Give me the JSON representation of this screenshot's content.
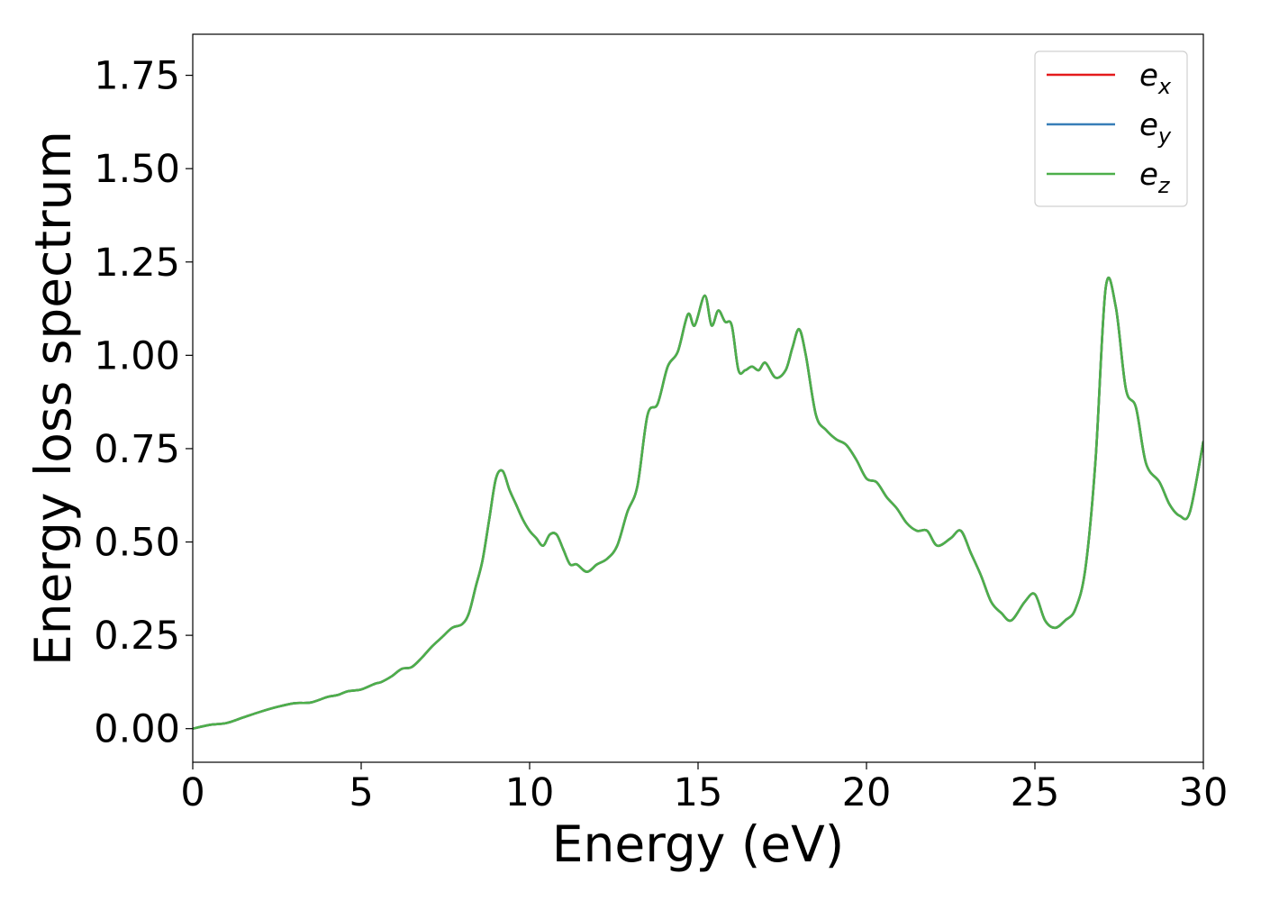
{
  "chart_data": {
    "type": "line",
    "title": "",
    "xlabel": "Energy (eV)",
    "ylabel": "Energy loss spectrum",
    "xlim": [
      0,
      30
    ],
    "ylim": [
      -0.09,
      1.86
    ],
    "xticks": [
      0,
      5,
      10,
      15,
      20,
      25,
      30
    ],
    "xtick_labels": [
      "0",
      "5",
      "10",
      "15",
      "20",
      "25",
      "30"
    ],
    "yticks": [
      0.0,
      0.25,
      0.5,
      0.75,
      1.0,
      1.25,
      1.5,
      1.75
    ],
    "ytick_labels": [
      "0.00",
      "0.25",
      "0.50",
      "0.75",
      "1.00",
      "1.25",
      "1.50",
      "1.75"
    ],
    "grid": false,
    "legend_position": "top-right",
    "x": [
      0,
      0.5,
      1,
      1.5,
      2,
      2.5,
      3,
      3.5,
      4,
      4.3,
      4.6,
      5,
      5.4,
      5.6,
      5.9,
      6.2,
      6.5,
      6.8,
      7.1,
      7.4,
      7.7,
      8.0,
      8.2,
      8.4,
      8.6,
      8.8,
      9.0,
      9.2,
      9.4,
      9.6,
      9.8,
      10.0,
      10.2,
      10.4,
      10.6,
      10.8,
      11.0,
      11.2,
      11.4,
      11.7,
      12.0,
      12.3,
      12.6,
      12.9,
      13.2,
      13.5,
      13.8,
      14.1,
      14.4,
      14.7,
      14.9,
      15.2,
      15.4,
      15.6,
      15.8,
      16.0,
      16.2,
      16.4,
      16.6,
      16.8,
      17.0,
      17.3,
      17.6,
      17.8,
      18.0,
      18.2,
      18.5,
      18.8,
      19.1,
      19.4,
      19.7,
      20.0,
      20.3,
      20.6,
      20.9,
      21.2,
      21.5,
      21.8,
      22.1,
      22.5,
      22.8,
      23.1,
      23.4,
      23.7,
      24.0,
      24.3,
      24.7,
      25.0,
      25.3,
      25.6,
      25.9,
      26.2,
      26.5,
      26.8,
      27.1,
      27.4,
      27.7,
      28.0,
      28.3,
      28.7,
      29.0,
      29.3,
      29.6,
      30.0
    ],
    "series": [
      {
        "name": "e_x",
        "label_base": "e",
        "label_sub": "x",
        "color": "#e41a1c",
        "values": [
          0.0,
          0.01,
          0.015,
          0.03,
          0.045,
          0.058,
          0.068,
          0.07,
          0.085,
          0.09,
          0.1,
          0.105,
          0.12,
          0.125,
          0.14,
          0.16,
          0.165,
          0.19,
          0.22,
          0.245,
          0.27,
          0.28,
          0.31,
          0.38,
          0.45,
          0.56,
          0.67,
          0.69,
          0.64,
          0.6,
          0.56,
          0.53,
          0.51,
          0.49,
          0.52,
          0.52,
          0.48,
          0.44,
          0.44,
          0.42,
          0.44,
          0.455,
          0.49,
          0.58,
          0.65,
          0.84,
          0.87,
          0.97,
          1.01,
          1.11,
          1.08,
          1.16,
          1.08,
          1.12,
          1.09,
          1.08,
          0.96,
          0.96,
          0.97,
          0.96,
          0.98,
          0.94,
          0.96,
          1.02,
          1.07,
          1.0,
          0.84,
          0.8,
          0.775,
          0.76,
          0.72,
          0.67,
          0.66,
          0.62,
          0.59,
          0.55,
          0.53,
          0.53,
          0.49,
          0.51,
          0.53,
          0.47,
          0.41,
          0.34,
          0.31,
          0.29,
          0.34,
          0.36,
          0.29,
          0.27,
          0.29,
          0.32,
          0.43,
          0.72,
          1.18,
          1.13,
          0.91,
          0.86,
          0.71,
          0.66,
          0.6,
          0.57,
          0.58,
          0.77
        ]
      },
      {
        "name": "e_y",
        "label_base": "e",
        "label_sub": "y",
        "color": "#377eb8",
        "values": [
          0.0,
          0.01,
          0.015,
          0.03,
          0.045,
          0.058,
          0.068,
          0.07,
          0.085,
          0.09,
          0.1,
          0.105,
          0.12,
          0.125,
          0.14,
          0.16,
          0.165,
          0.19,
          0.22,
          0.245,
          0.27,
          0.28,
          0.31,
          0.38,
          0.45,
          0.56,
          0.67,
          0.69,
          0.64,
          0.6,
          0.56,
          0.53,
          0.51,
          0.49,
          0.52,
          0.52,
          0.48,
          0.44,
          0.44,
          0.42,
          0.44,
          0.455,
          0.49,
          0.58,
          0.65,
          0.84,
          0.87,
          0.97,
          1.01,
          1.11,
          1.08,
          1.16,
          1.08,
          1.12,
          1.09,
          1.08,
          0.96,
          0.96,
          0.97,
          0.96,
          0.98,
          0.94,
          0.96,
          1.02,
          1.07,
          1.0,
          0.84,
          0.8,
          0.775,
          0.76,
          0.72,
          0.67,
          0.66,
          0.62,
          0.59,
          0.55,
          0.53,
          0.53,
          0.49,
          0.51,
          0.53,
          0.47,
          0.41,
          0.34,
          0.31,
          0.29,
          0.34,
          0.36,
          0.29,
          0.27,
          0.29,
          0.32,
          0.43,
          0.72,
          1.18,
          1.13,
          0.91,
          0.86,
          0.71,
          0.66,
          0.6,
          0.57,
          0.58,
          0.77
        ]
      },
      {
        "name": "e_z",
        "label_base": "e",
        "label_sub": "z",
        "color": "#4daf4a",
        "values": [
          0.0,
          0.01,
          0.015,
          0.03,
          0.045,
          0.058,
          0.068,
          0.07,
          0.085,
          0.09,
          0.1,
          0.105,
          0.12,
          0.125,
          0.14,
          0.16,
          0.165,
          0.19,
          0.22,
          0.245,
          0.27,
          0.28,
          0.31,
          0.38,
          0.45,
          0.56,
          0.67,
          0.69,
          0.64,
          0.6,
          0.56,
          0.53,
          0.51,
          0.49,
          0.52,
          0.52,
          0.48,
          0.44,
          0.44,
          0.42,
          0.44,
          0.455,
          0.49,
          0.58,
          0.65,
          0.84,
          0.87,
          0.97,
          1.01,
          1.11,
          1.08,
          1.16,
          1.08,
          1.12,
          1.09,
          1.08,
          0.96,
          0.96,
          0.97,
          0.96,
          0.98,
          0.94,
          0.96,
          1.02,
          1.07,
          1.0,
          0.84,
          0.8,
          0.775,
          0.76,
          0.72,
          0.67,
          0.66,
          0.62,
          0.59,
          0.55,
          0.53,
          0.53,
          0.49,
          0.51,
          0.53,
          0.47,
          0.41,
          0.34,
          0.31,
          0.29,
          0.34,
          0.36,
          0.29,
          0.27,
          0.29,
          0.32,
          0.43,
          0.72,
          1.18,
          1.13,
          0.91,
          0.86,
          0.71,
          0.66,
          0.6,
          0.57,
          0.58,
          0.77
        ]
      }
    ]
  }
}
